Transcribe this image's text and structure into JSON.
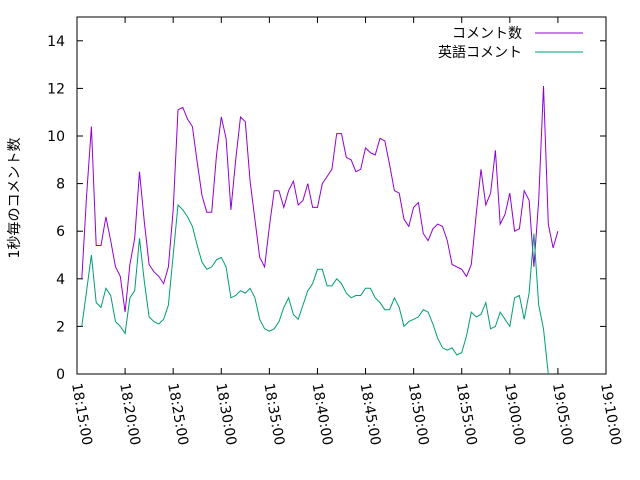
{
  "chart_data": {
    "type": "line",
    "title": "",
    "xlabel": "",
    "ylabel": "1秒毎のコメント数",
    "ylim": [
      0,
      15
    ],
    "xlim": [
      "18:15:00",
      "19:10:00"
    ],
    "y_ticks": [
      0,
      2,
      4,
      6,
      8,
      10,
      12,
      14
    ],
    "x_ticks": [
      "18:15:00",
      "18:20:00",
      "18:25:00",
      "18:30:00",
      "18:35:00",
      "18:40:00",
      "18:45:00",
      "18:50:00",
      "18:55:00",
      "19:00:00",
      "19:05:00",
      "19:10:00"
    ],
    "grid": false,
    "legend_position": "top-right",
    "x_time_step_seconds": 30,
    "series": [
      {
        "name": "コメント数",
        "color": "#9400d3",
        "x_start": "18:15:30",
        "values": [
          4.0,
          7.5,
          10.4,
          5.4,
          5.4,
          6.6,
          5.6,
          4.5,
          4.1,
          2.6,
          4.6,
          5.7,
          8.5,
          6.4,
          4.6,
          4.3,
          4.1,
          3.8,
          4.5,
          6.9,
          11.1,
          11.2,
          10.7,
          10.4,
          8.9,
          7.5,
          6.8,
          6.8,
          9.2,
          10.8,
          9.9,
          6.9,
          9.0,
          10.8,
          10.6,
          8.1,
          6.5,
          4.9,
          4.5,
          6.2,
          7.7,
          7.7,
          7.0,
          7.7,
          8.1,
          7.1,
          7.3,
          8.0,
          7.0,
          7.0,
          8.0,
          8.3,
          8.6,
          10.1,
          10.1,
          9.1,
          9.0,
          8.5,
          8.6,
          9.5,
          9.3,
          9.2,
          9.9,
          9.8,
          8.8,
          7.7,
          7.6,
          6.5,
          6.2,
          7.0,
          7.2,
          5.9,
          5.6,
          6.1,
          6.3,
          6.2,
          5.6,
          4.6,
          4.5,
          4.4,
          4.1,
          4.6,
          6.7,
          8.6,
          7.1,
          7.6,
          9.4,
          6.3,
          6.7,
          7.6,
          6.0,
          6.1,
          7.7,
          7.3,
          4.5,
          7.3,
          12.1,
          6.3,
          5.3,
          6.0
        ]
      },
      {
        "name": "英語コメント",
        "color": "#009e73",
        "x_start": "18:15:30",
        "values": [
          2.0,
          3.5,
          5.0,
          3.0,
          2.8,
          3.6,
          3.3,
          2.2,
          2.0,
          1.7,
          3.2,
          3.5,
          5.7,
          3.9,
          2.4,
          2.2,
          2.1,
          2.3,
          2.9,
          5.0,
          7.1,
          6.9,
          6.6,
          6.2,
          5.4,
          4.7,
          4.4,
          4.5,
          4.8,
          4.9,
          4.5,
          3.2,
          3.3,
          3.5,
          3.4,
          3.6,
          3.2,
          2.3,
          1.9,
          1.8,
          1.9,
          2.2,
          2.8,
          3.2,
          2.5,
          2.3,
          2.9,
          3.5,
          3.8,
          4.4,
          4.4,
          3.7,
          3.7,
          4.0,
          3.8,
          3.4,
          3.2,
          3.3,
          3.3,
          3.6,
          3.6,
          3.2,
          3.0,
          2.7,
          2.7,
          3.2,
          2.8,
          2.0,
          2.2,
          2.3,
          2.4,
          2.7,
          2.6,
          2.1,
          1.5,
          1.1,
          1.0,
          1.1,
          0.8,
          0.9,
          1.6,
          2.6,
          2.4,
          2.5,
          3.0,
          1.9,
          2.0,
          2.6,
          2.3,
          2.0,
          3.2,
          3.3,
          2.3,
          3.4,
          5.9,
          2.9,
          1.9,
          0.0
        ]
      }
    ]
  }
}
